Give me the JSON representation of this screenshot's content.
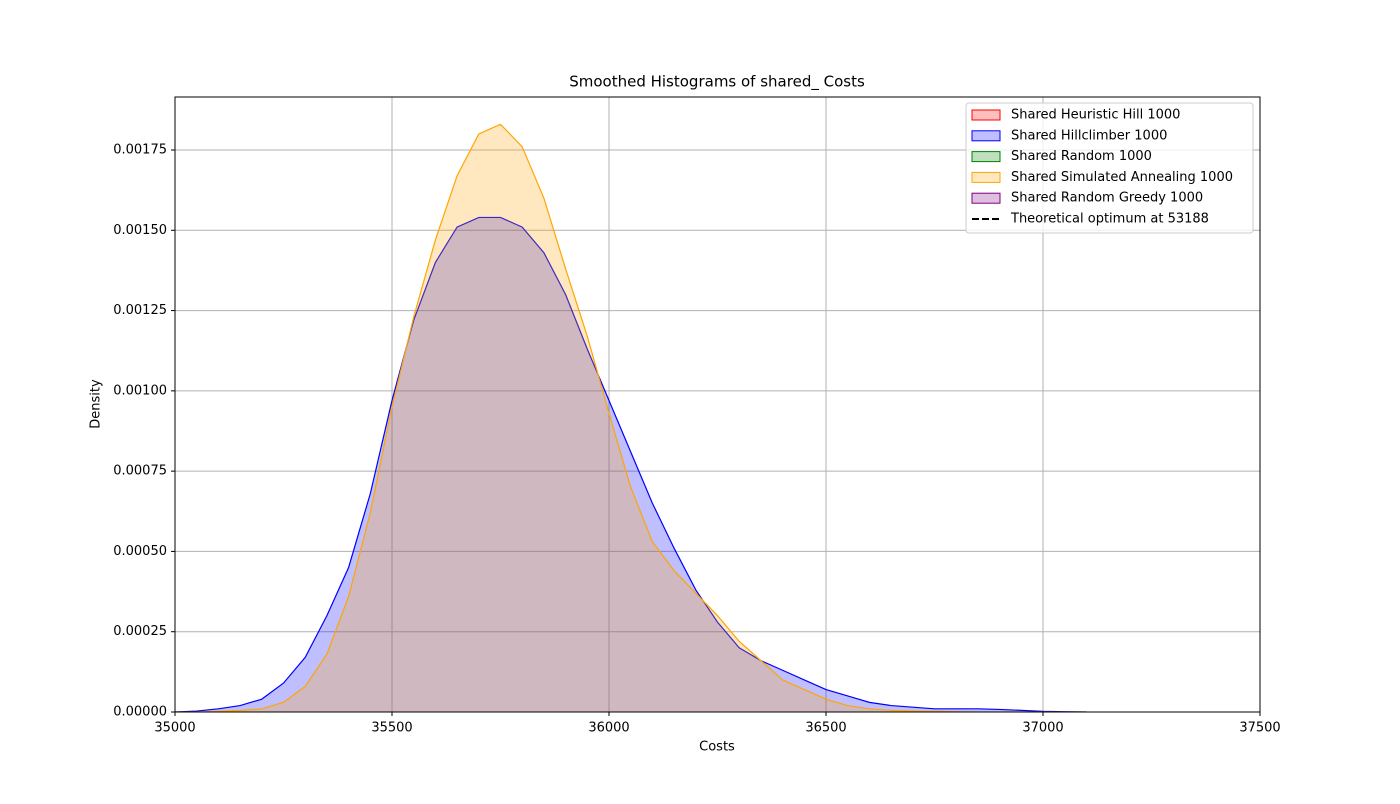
{
  "chart_data": {
    "type": "kde",
    "title": "Smoothed Histograms of shared_ Costs",
    "xlabel": "Costs",
    "ylabel": "Density",
    "x": [
      35000,
      35050,
      35100,
      35150,
      35200,
      35250,
      35300,
      35350,
      35400,
      35450,
      35500,
      35550,
      35600,
      35650,
      35700,
      35750,
      35800,
      35850,
      35900,
      35950,
      36000,
      36050,
      36100,
      36150,
      36200,
      36250,
      36300,
      36350,
      36400,
      36450,
      36500,
      36550,
      36600,
      36650,
      36700,
      36750,
      36800,
      36850,
      36900,
      36950,
      37000,
      37050,
      37100
    ],
    "series": [
      {
        "name": "Shared Heuristic Hill 1000",
        "color": "red",
        "values": [
          null,
          null,
          null,
          null,
          null,
          null,
          null,
          null,
          null,
          null,
          null,
          null,
          null,
          null,
          null,
          null,
          null,
          null,
          null,
          null,
          null,
          null,
          null,
          null,
          null,
          null,
          null,
          null,
          null,
          null,
          null,
          null,
          null,
          null,
          null,
          null,
          null,
          null,
          null,
          null,
          null,
          null,
          null
        ]
      },
      {
        "name": "Shared Hillclimber 1000",
        "color": "blue",
        "values": [
          0,
          3e-06,
          1e-05,
          2e-05,
          4e-05,
          9e-05,
          0.00017,
          0.0003,
          0.00045,
          0.00068,
          0.00097,
          0.00122,
          0.0014,
          0.00151,
          0.00154,
          0.00154,
          0.00151,
          0.00143,
          0.0013,
          0.00113,
          0.00097,
          0.00081,
          0.00065,
          0.00051,
          0.00038,
          0.00028,
          0.0002,
          0.00016,
          0.00013,
          0.0001,
          7e-05,
          5e-05,
          3e-05,
          2e-05,
          1.5e-05,
          1e-05,
          1e-05,
          1e-05,
          8e-06,
          5e-06,
          2e-06,
          1e-06,
          0
        ]
      },
      {
        "name": "Shared Random 1000",
        "color": "green",
        "values": [
          null,
          null,
          null,
          null,
          null,
          null,
          null,
          null,
          null,
          null,
          null,
          null,
          null,
          null,
          null,
          null,
          null,
          null,
          null,
          null,
          null,
          null,
          null,
          null,
          null,
          null,
          null,
          null,
          null,
          null,
          null,
          null,
          null,
          null,
          null,
          null,
          null,
          null,
          null,
          null,
          null,
          null,
          null
        ]
      },
      {
        "name": "Shared Simulated Annealing 1000",
        "color": "orange",
        "values": [
          0,
          0,
          2e-06,
          5e-06,
          1e-05,
          3e-05,
          8e-05,
          0.00018,
          0.00036,
          0.00062,
          0.00095,
          0.00123,
          0.00147,
          0.00167,
          0.0018,
          0.00183,
          0.00176,
          0.0016,
          0.00138,
          0.00117,
          0.00093,
          0.0007,
          0.00053,
          0.00044,
          0.00037,
          0.0003,
          0.00022,
          0.00016,
          0.0001,
          7e-05,
          4e-05,
          2e-05,
          1e-05,
          5e-06,
          3e-06,
          2e-06,
          1e-06,
          0,
          0,
          0,
          0,
          0,
          0
        ]
      },
      {
        "name": "Shared Random Greedy 1000",
        "color": "purple",
        "values": [
          null,
          null,
          null,
          null,
          null,
          null,
          null,
          null,
          null,
          null,
          null,
          null,
          null,
          null,
          null,
          null,
          null,
          null,
          null,
          null,
          null,
          null,
          null,
          null,
          null,
          null,
          null,
          null,
          null,
          null,
          null,
          null,
          null,
          null,
          null,
          null,
          null,
          null,
          null,
          null,
          null,
          null,
          null
        ]
      }
    ],
    "vline": {
      "name": "Theoretical optimum at 53188",
      "color": "black",
      "x": 53188
    },
    "xlim": [
      35000,
      37500
    ],
    "xticks": [
      35000,
      35500,
      36000,
      36500,
      37000,
      37500
    ],
    "ylim": [
      0,
      0.001915
    ],
    "yticks": [
      {
        "value": 0,
        "label": "0.00000"
      },
      {
        "value": 0.00025,
        "label": "0.00025"
      },
      {
        "value": 0.0005,
        "label": "0.00050"
      },
      {
        "value": 0.00075,
        "label": "0.00075"
      },
      {
        "value": 0.001,
        "label": "0.00100"
      },
      {
        "value": 0.00125,
        "label": "0.00125"
      },
      {
        "value": 0.0015,
        "label": "0.00150"
      },
      {
        "value": 0.00175,
        "label": "0.00175"
      }
    ],
    "grid": true,
    "legend": "upper right",
    "fill_opacity": 0.25
  }
}
